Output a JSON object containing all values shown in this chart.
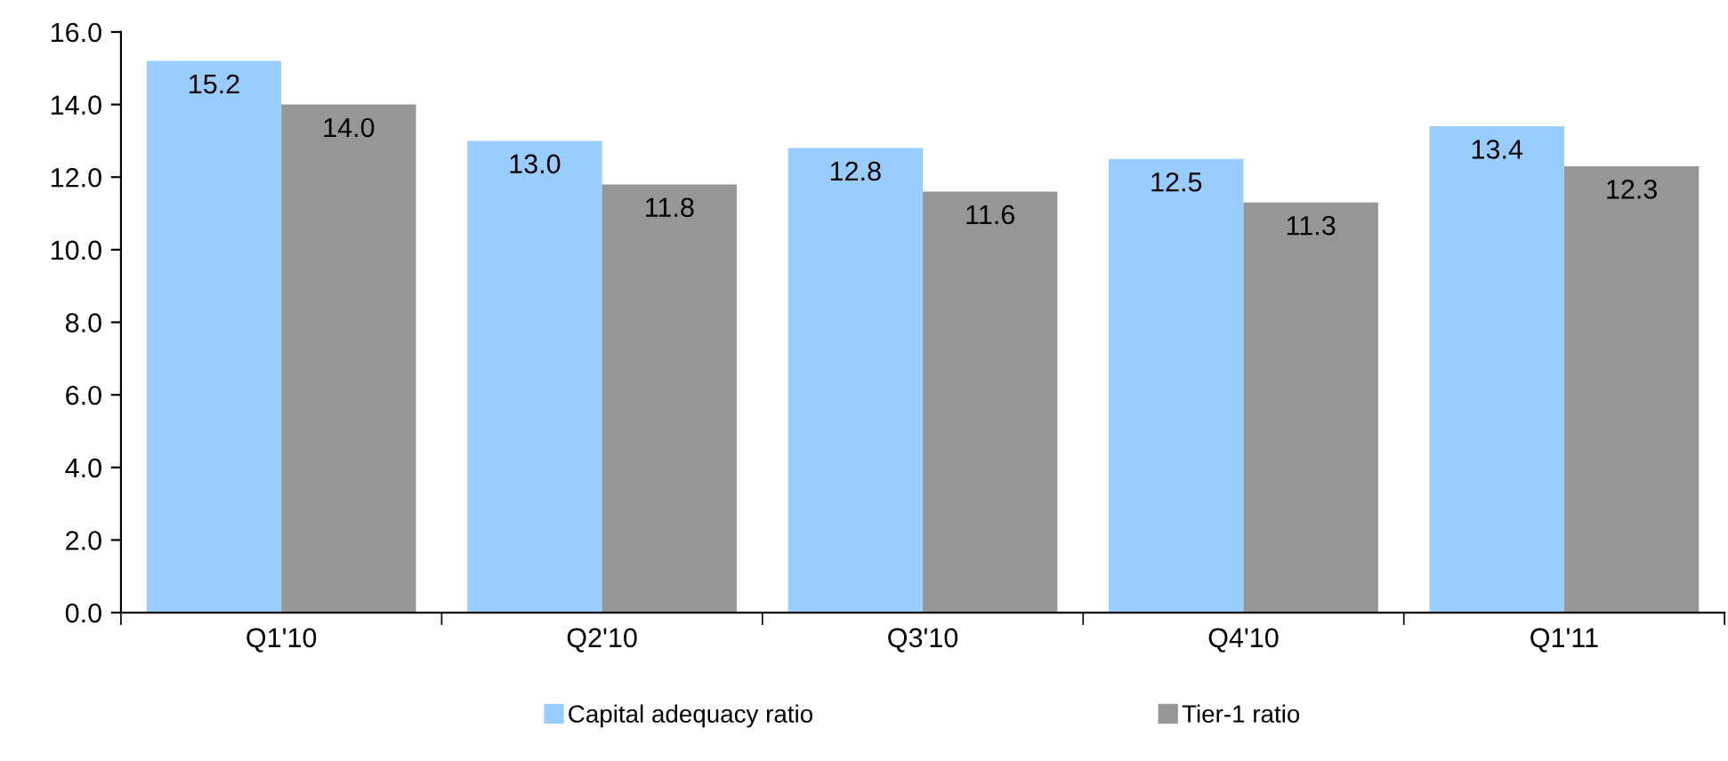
{
  "chart_data": {
    "type": "bar",
    "categories": [
      "Q1'10",
      "Q2'10",
      "Q3'10",
      "Q4'10",
      "Q1'11"
    ],
    "series": [
      {
        "name": "Capital adequacy ratio",
        "color": "#99ccff",
        "values": [
          15.2,
          13.0,
          12.8,
          12.5,
          13.4
        ],
        "value_labels": [
          "15.2",
          "13.0",
          "12.8",
          "12.5",
          "13.4"
        ]
      },
      {
        "name": "Tier-1 ratio",
        "color": "#969696",
        "values": [
          14.0,
          11.8,
          11.6,
          11.3,
          12.3
        ],
        "value_labels": [
          "14.0",
          "11.8",
          "11.6",
          "11.3",
          "12.3"
        ]
      }
    ],
    "ylim": [
      0,
      16
    ],
    "yticks": [
      {
        "value": 0,
        "label": "0.0"
      },
      {
        "value": 2,
        "label": "2.0"
      },
      {
        "value": 4,
        "label": "4.0"
      },
      {
        "value": 6,
        "label": "6.0"
      },
      {
        "value": 8,
        "label": "8.0"
      },
      {
        "value": 10,
        "label": "10.0"
      },
      {
        "value": 12,
        "label": "12.0"
      },
      {
        "value": 14,
        "label": "14.0"
      },
      {
        "value": 16,
        "label": "16.0"
      }
    ],
    "grid": false,
    "legend": "bottom"
  }
}
